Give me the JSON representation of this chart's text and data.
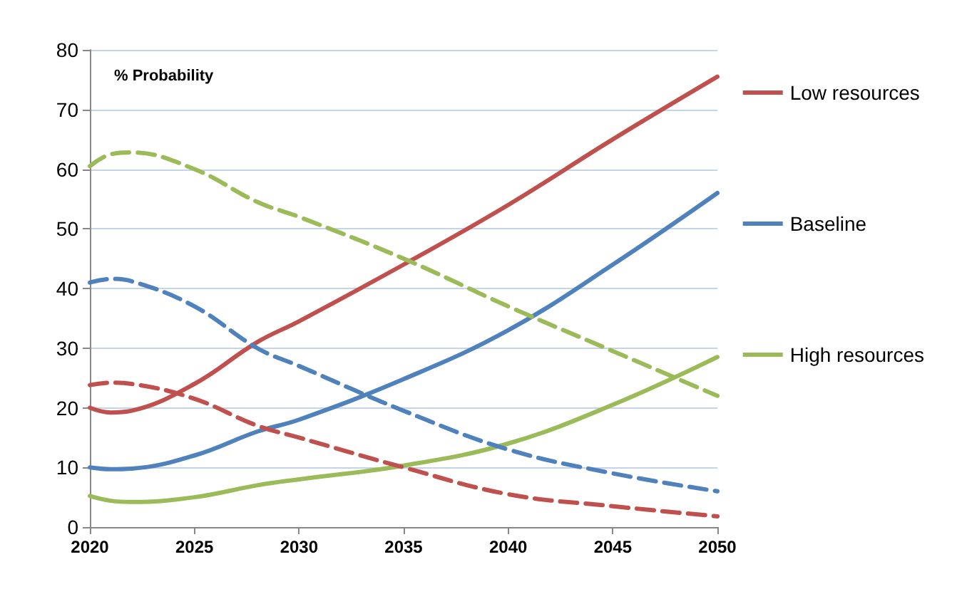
{
  "chart_data": {
    "type": "line",
    "annotations": [
      "% Probability"
    ],
    "x": [
      2020,
      2021,
      2022,
      2025,
      2028,
      2030,
      2035,
      2040,
      2045,
      2050
    ],
    "xlim": [
      2020,
      2050
    ],
    "xticks": [
      2020,
      2025,
      2030,
      2035,
      2040,
      2045,
      2050
    ],
    "ylim": [
      0,
      80
    ],
    "yticks": [
      0,
      10,
      20,
      30,
      40,
      50,
      60,
      70,
      80
    ],
    "grid": "y",
    "legend": "right",
    "marker": "none",
    "line_style": "solid",
    "series": [
      {
        "name": "Low resources",
        "color": "#c0504d",
        "values": [
          20,
          19.2,
          19.5,
          24,
          31,
          34.5,
          44,
          54,
          65,
          75.5
        ]
      },
      {
        "name": "Baseline",
        "color": "#4f81bd",
        "values": [
          10,
          9.7,
          9.8,
          12,
          16,
          18,
          24.8,
          33,
          44,
          56
        ]
      },
      {
        "name": "High resources",
        "color": "#9bbb59",
        "values": [
          5.2,
          4.4,
          4.2,
          5,
          7,
          8,
          10.3,
          14,
          20.5,
          28.5
        ]
      },
      {
        "color": "#c0504d",
        "line_style": "dashed",
        "values": [
          23.8,
          24.2,
          24,
          21.5,
          17,
          15,
          10,
          5.5,
          3.5,
          1.8
        ]
      },
      {
        "color": "#4f81bd",
        "line_style": "dashed",
        "values": [
          41,
          41.6,
          41.2,
          37,
          30,
          27,
          19.5,
          13,
          9,
          6
        ]
      },
      {
        "color": "#9bbb59",
        "line_style": "dashed",
        "values": [
          60.5,
          62.5,
          62.8,
          60,
          54.5,
          52,
          45,
          37,
          29.5,
          22
        ]
      }
    ]
  }
}
